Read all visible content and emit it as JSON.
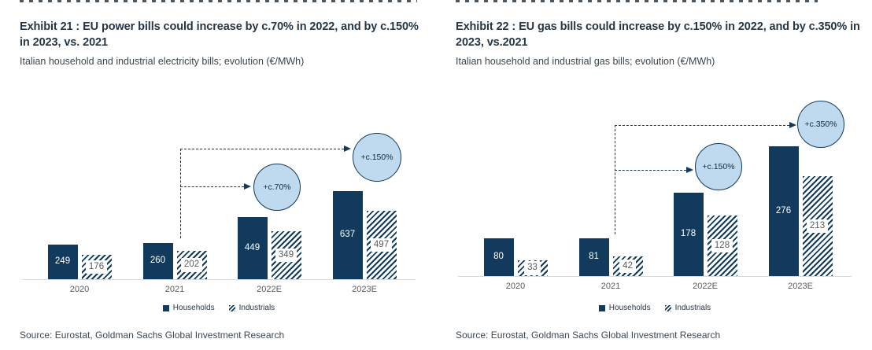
{
  "panels": [
    {
      "title": "Exhibit 21 : EU power bills could increase by c.70% in 2022, and by c.150% in 2023, vs. 2021",
      "subtitle": "Italian household and industrial electricity bills; evolution (€/MWh)",
      "source": "Source: Eurostat, Goldman Sachs Global Investment Research"
    },
    {
      "title": "Exhibit 22 : EU gas bills could increase by c.150% in 2022, and by c.350% in 2023, vs.2021",
      "subtitle": "Italian household and industrial gas bills; evolution (€/MWh)",
      "source": "Source: Eurostat, Goldman Sachs Global Investment Research"
    }
  ],
  "chart_data": [
    {
      "type": "bar",
      "title": "Exhibit 21 : EU power bills could increase by c.70% in 2022, and by c.150% in 2023, vs. 2021",
      "ylabel": "€/MWh",
      "xlabel": "",
      "categories": [
        "2020",
        "2021",
        "2022E",
        "2023E"
      ],
      "series": [
        {
          "name": "Households",
          "values": [
            249,
            260,
            449,
            637
          ]
        },
        {
          "name": "Industrials",
          "values": [
            176,
            202,
            349,
            497
          ]
        }
      ],
      "annotations": [
        {
          "label": "+c.70%",
          "from_category": "2021",
          "target_category": "2022E"
        },
        {
          "label": "+c.150%",
          "from_category": "2021",
          "target_category": "2023E"
        }
      ],
      "grid": false,
      "legend_position": "bottom"
    },
    {
      "type": "bar",
      "title": "Exhibit 22 : EU gas bills could increase by c.150% in 2022, and by c.350% in 2023, vs.2021",
      "ylabel": "€/MWh",
      "xlabel": "",
      "categories": [
        "2020",
        "2021",
        "2022E",
        "2023E"
      ],
      "series": [
        {
          "name": "Households",
          "values": [
            80,
            81,
            178,
            276
          ]
        },
        {
          "name": "Industrials",
          "values": [
            33,
            42,
            128,
            213
          ]
        }
      ],
      "annotations": [
        {
          "label": "+c.150%",
          "from_category": "2021",
          "target_category": "2022E"
        },
        {
          "label": "+c.350%",
          "from_category": "2021",
          "target_category": "2023E"
        }
      ],
      "grid": false,
      "legend_position": "bottom"
    }
  ],
  "colors": {
    "navy": "#113A5C",
    "bubble_fill": "#BFDAEE",
    "title_text": "#253746",
    "muted_text": "#595959",
    "axis_line": "#D9D9D9",
    "source_text": "#394955"
  }
}
